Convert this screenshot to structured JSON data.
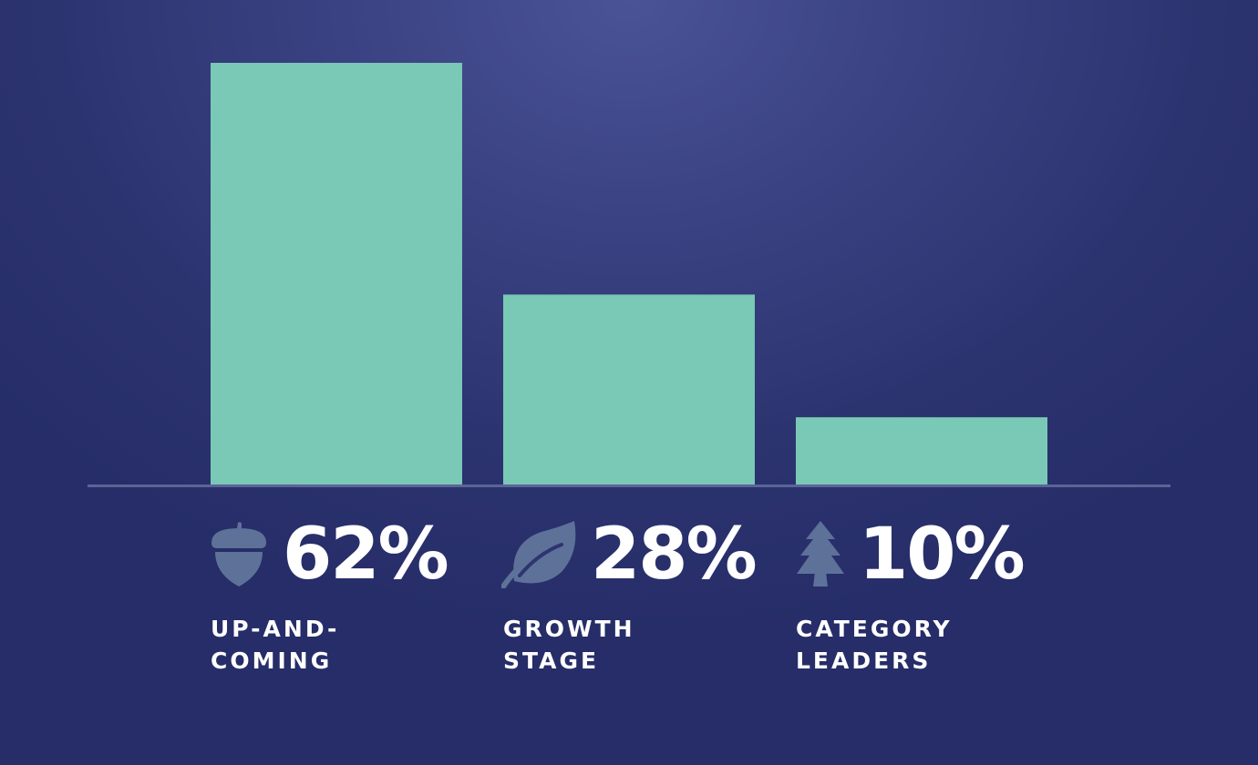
{
  "chart_data": {
    "type": "bar",
    "categories": [
      "UP-AND-\nCOMING",
      "GROWTH\nSTAGE",
      "CATEGORY\nLEADERS"
    ],
    "values": [
      62,
      28,
      10
    ],
    "data_labels": [
      "62%",
      "28%",
      "10%"
    ],
    "icons": [
      "acorn-icon",
      "leaf-icon",
      "pine-tree-icon"
    ],
    "title": "",
    "xlabel": "",
    "ylabel": "",
    "ylim": [
      0,
      62
    ],
    "grid": false,
    "legend": "none"
  },
  "colors": {
    "bar": "#7ac8b6",
    "baseline": "#5c6497",
    "icon": "#5e7199",
    "text": "#ffffff",
    "background": "#2d3571"
  }
}
